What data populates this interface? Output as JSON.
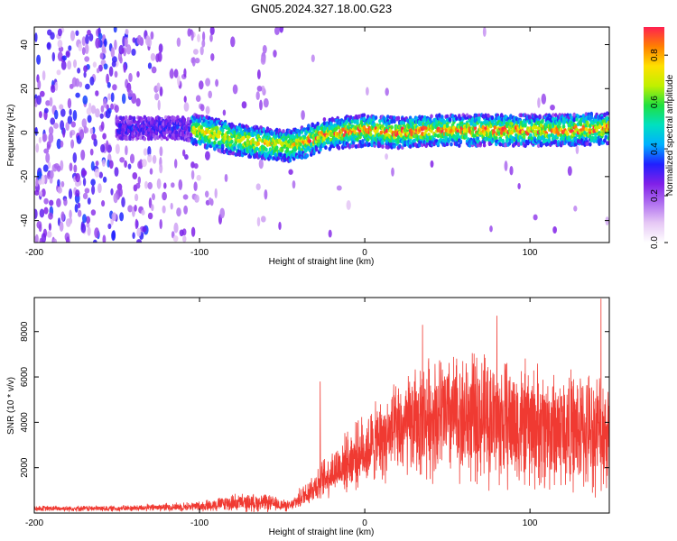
{
  "figure_title": "GN05.2024.327.18.00.G23",
  "chart_data": [
    {
      "type": "heatmap",
      "title": "GN05.2024.327.18.00.G23",
      "xlabel": "Height of straight line (km)",
      "ylabel": "Frequency (Hz)",
      "xlim": [
        -200,
        148
      ],
      "ylim": [
        -50,
        48
      ],
      "xticks": [
        -200,
        -100,
        0,
        100
      ],
      "xtick_labels": [
        "-200",
        "-100",
        "0",
        "100"
      ],
      "yticks": [
        -40,
        -20,
        0,
        20,
        40
      ],
      "ytick_labels": [
        "-40",
        "-20",
        "0",
        "20",
        "40"
      ],
      "colorbar": {
        "label": "Normalized spectral amplitude",
        "range": [
          0,
          0.92
        ],
        "ticks": [
          0.0,
          0.2,
          0.4,
          0.6,
          0.8
        ],
        "tick_labels": [
          "0.0",
          "0.2",
          "0.4",
          "0.6",
          "0.8"
        ],
        "colormap": [
          "#ffffff",
          "#e6c8f5",
          "#b070f0",
          "#8020e8",
          "#2020ff",
          "#00b0ff",
          "#00e0c0",
          "#20e040",
          "#c0f000",
          "#ffe000",
          "#ff8000",
          "#ff2050"
        ]
      },
      "ridge": {
        "description": "dominant frequency track",
        "points": [
          {
            "x": -110,
            "f": 2
          },
          {
            "x": -95,
            "f": 0
          },
          {
            "x": -80,
            "f": -3
          },
          {
            "x": -60,
            "f": -5
          },
          {
            "x": -45,
            "f": -6
          },
          {
            "x": -35,
            "f": -4
          },
          {
            "x": -25,
            "f": -1
          },
          {
            "x": -15,
            "f": 0
          },
          {
            "x": 0,
            "f": 1
          },
          {
            "x": 20,
            "f": 0
          },
          {
            "x": 40,
            "f": 1
          },
          {
            "x": 60,
            "f": 1
          },
          {
            "x": 80,
            "f": 1
          },
          {
            "x": 100,
            "f": 1
          },
          {
            "x": 120,
            "f": 1
          },
          {
            "x": 148,
            "f": 2
          }
        ]
      }
    },
    {
      "type": "line",
      "xlabel": "Height of straight line (km)",
      "ylabel": "SNR (10 * v/v)",
      "xlim": [
        -200,
        148
      ],
      "ylim": [
        0,
        9500
      ],
      "xticks": [
        -200,
        -100,
        0,
        100
      ],
      "xtick_labels": [
        "-200",
        "-100",
        "0",
        "100"
      ],
      "yticks": [
        2000,
        4000,
        6000,
        8000
      ],
      "ytick_labels": [
        "2000",
        "4000",
        "6000",
        "8000"
      ],
      "color": "#f03a32",
      "envelope": [
        {
          "x": -200,
          "mean": 200,
          "spread": 150
        },
        {
          "x": -150,
          "mean": 200,
          "spread": 150
        },
        {
          "x": -100,
          "mean": 300,
          "spread": 250
        },
        {
          "x": -80,
          "mean": 450,
          "spread": 450
        },
        {
          "x": -60,
          "mean": 450,
          "spread": 450
        },
        {
          "x": -45,
          "mean": 300,
          "spread": 250
        },
        {
          "x": -35,
          "mean": 900,
          "spread": 700
        },
        {
          "x": -20,
          "mean": 1800,
          "spread": 1200
        },
        {
          "x": 0,
          "mean": 2800,
          "spread": 1800
        },
        {
          "x": 20,
          "mean": 3600,
          "spread": 2400
        },
        {
          "x": 40,
          "mean": 4300,
          "spread": 3100
        },
        {
          "x": 70,
          "mean": 4200,
          "spread": 3300
        },
        {
          "x": 100,
          "mean": 3800,
          "spread": 3200
        },
        {
          "x": 130,
          "mean": 3600,
          "spread": 3000
        },
        {
          "x": 148,
          "mean": 3600,
          "spread": 3000
        }
      ],
      "peaks": [
        {
          "x": -27,
          "y": 5800
        },
        {
          "x": 35,
          "y": 8300
        },
        {
          "x": 80,
          "y": 8700
        },
        {
          "x": 143,
          "y": 9450
        }
      ]
    }
  ]
}
